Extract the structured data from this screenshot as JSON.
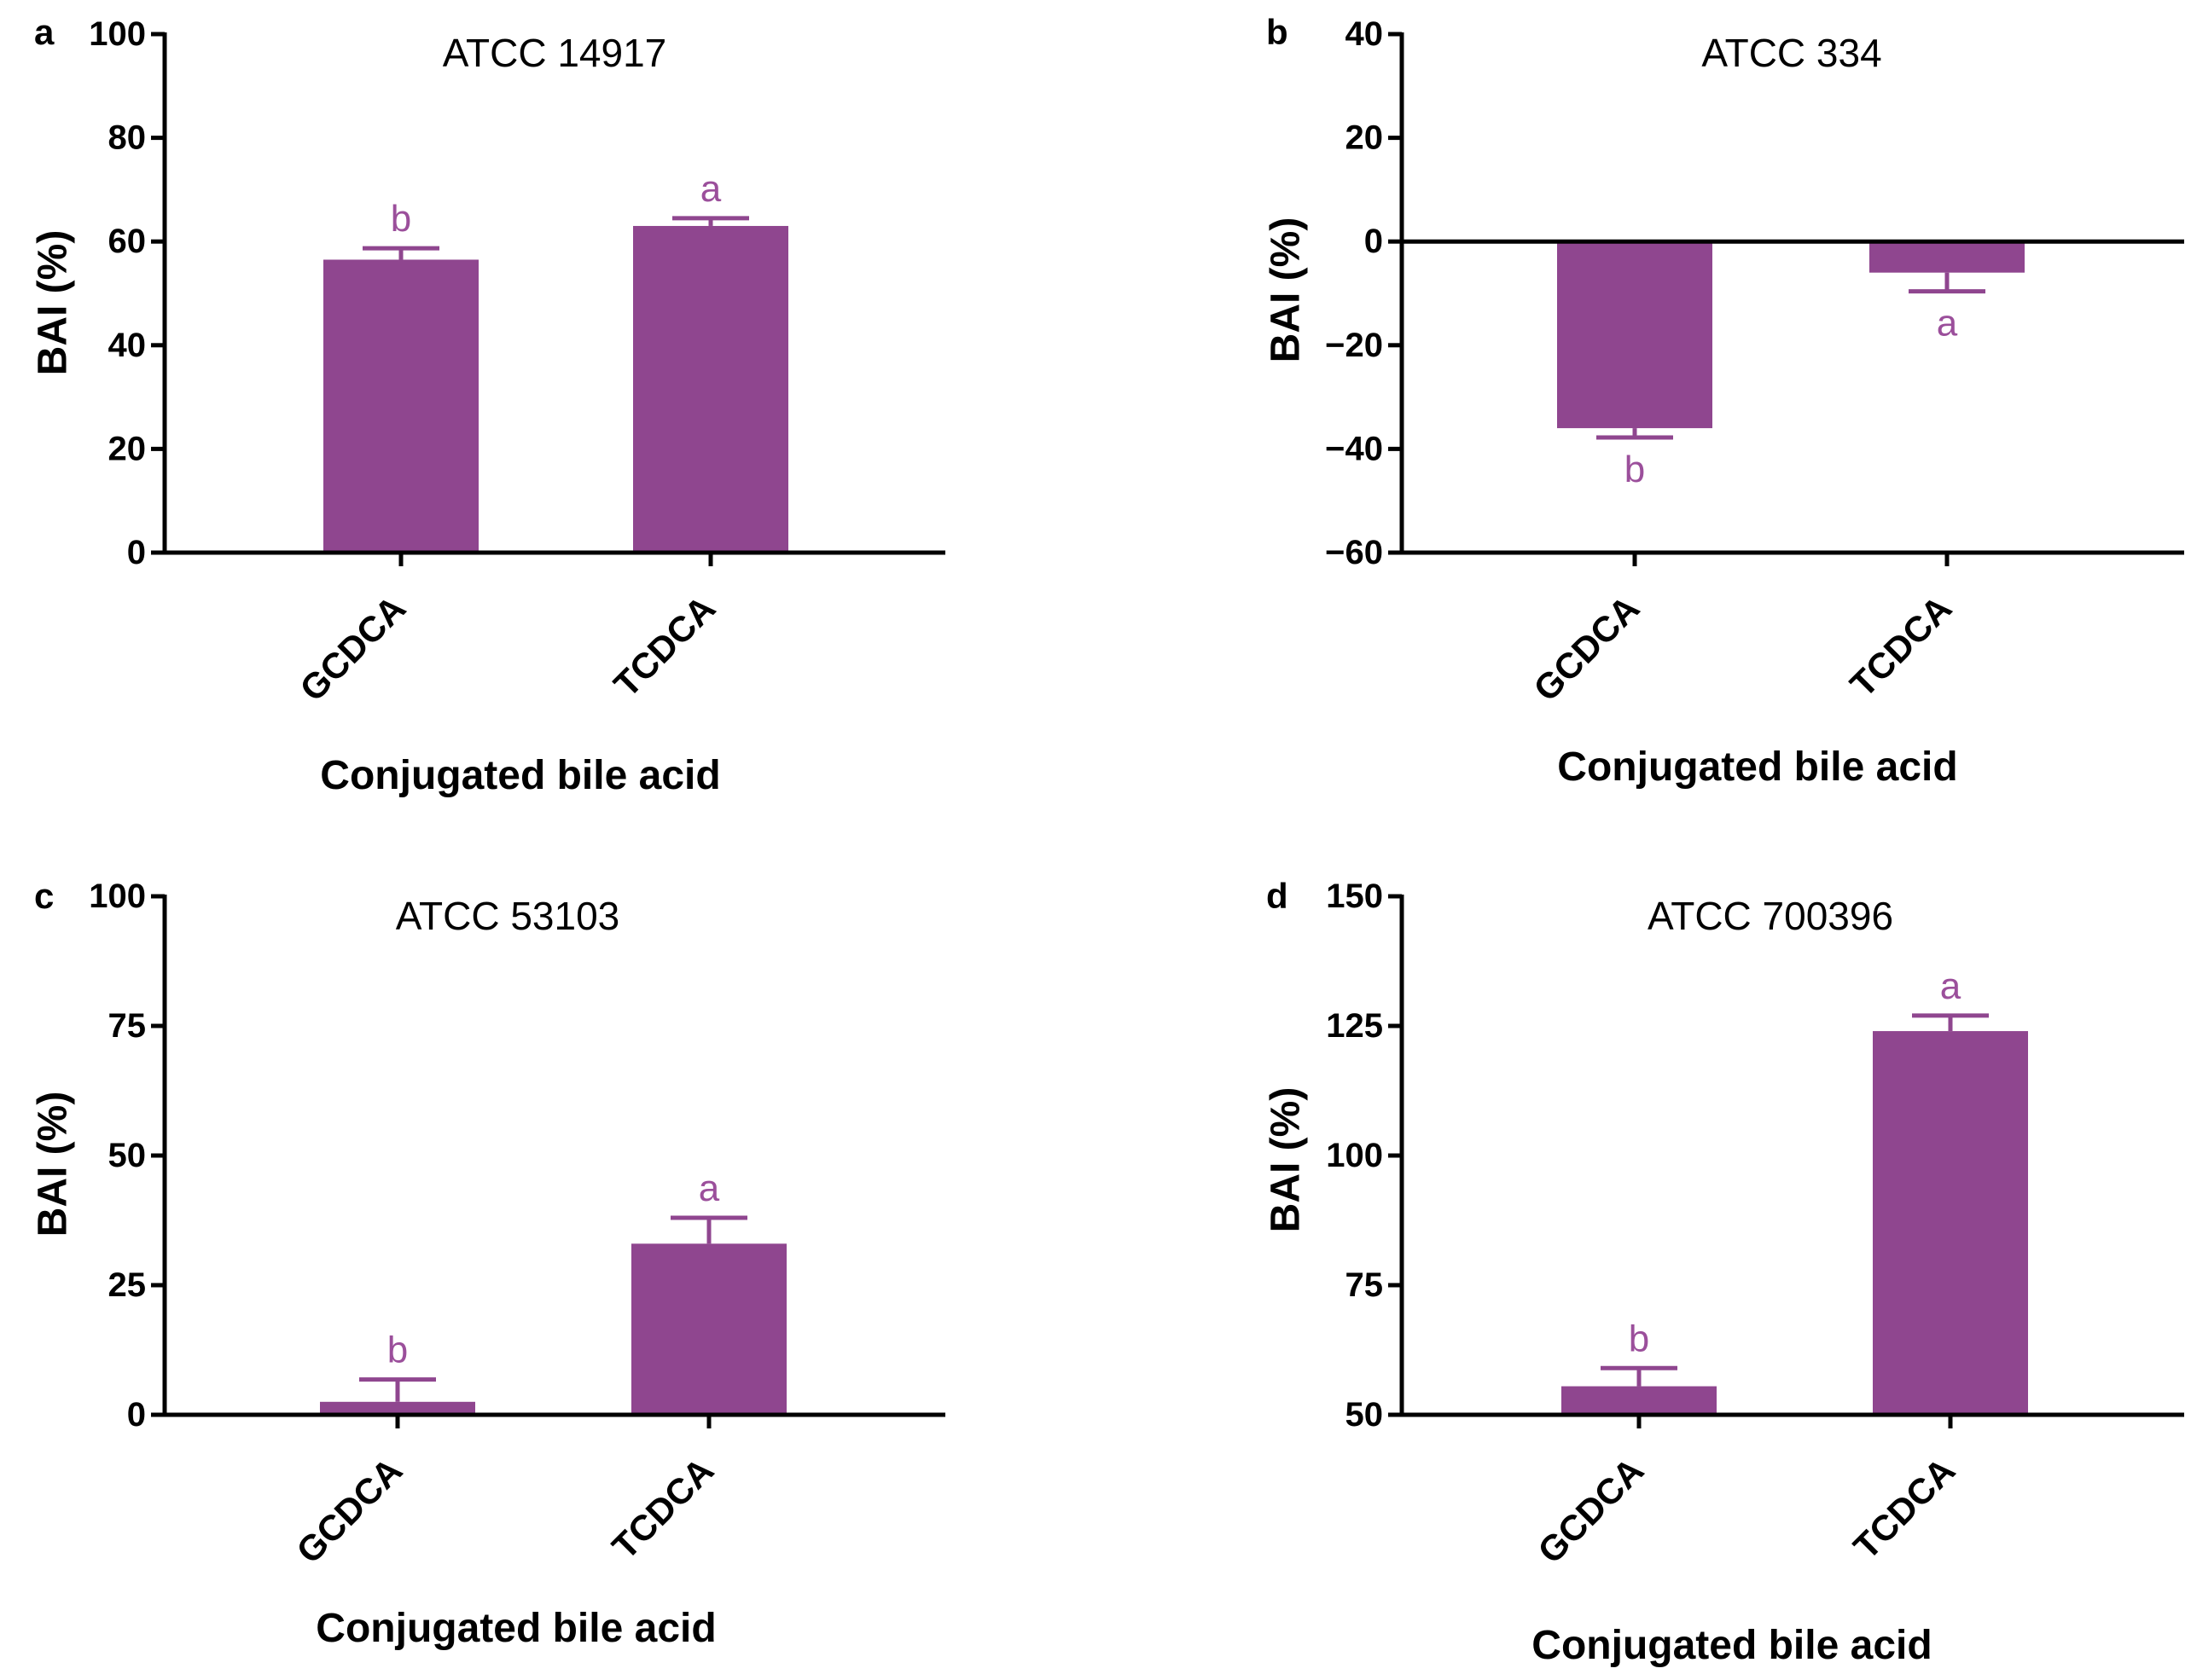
{
  "colors": {
    "bar": "#8f468f",
    "sig": "#9b4f9b",
    "axis": "#000000"
  },
  "chart_data": [
    {
      "panel": "a",
      "type": "bar",
      "title": "ATCC 14917",
      "xlabel": "Conjugated bile acid",
      "ylabel": "BAI (%)",
      "ylim": [
        0,
        100
      ],
      "yticks": [
        0,
        20,
        40,
        60,
        80,
        100
      ],
      "categories": [
        "GCDCA",
        "TCDCA"
      ],
      "values": [
        56.5,
        63
      ],
      "errors": [
        2.2,
        1.5
      ],
      "significance": [
        "b",
        "a"
      ]
    },
    {
      "panel": "b",
      "type": "bar",
      "title": "ATCC 334",
      "xlabel": "Conjugated bile acid",
      "ylabel": "BAI (%)",
      "ylim": [
        -60,
        40
      ],
      "yticks": [
        -60,
        -40,
        -20,
        0,
        20,
        40
      ],
      "categories": [
        "GCDCA",
        "TCDCA"
      ],
      "values": [
        -36,
        -6
      ],
      "errors": [
        1.8,
        3.6
      ],
      "significance": [
        "b",
        "a"
      ]
    },
    {
      "panel": "c",
      "type": "bar",
      "title": "ATCC 53103",
      "xlabel": "Conjugated bile acid",
      "ylabel": "BAI (%)",
      "ylim": [
        0,
        100
      ],
      "yticks": [
        0,
        25,
        50,
        75,
        100
      ],
      "categories": [
        "GCDCA",
        "TCDCA"
      ],
      "values": [
        2.5,
        33
      ],
      "errors": [
        4.3,
        5
      ],
      "significance": [
        "b",
        "a"
      ]
    },
    {
      "panel": "d",
      "type": "bar",
      "title": "ATCC 700396",
      "xlabel": "Conjugated bile acid",
      "ylabel": "BAI (%)",
      "ylim": [
        50,
        150
      ],
      "yticks": [
        50,
        75,
        100,
        125,
        150
      ],
      "categories": [
        "GCDCA",
        "TCDCA"
      ],
      "values": [
        55.5,
        124
      ],
      "errors": [
        3.5,
        3
      ],
      "significance": [
        "b",
        "a"
      ]
    }
  ]
}
